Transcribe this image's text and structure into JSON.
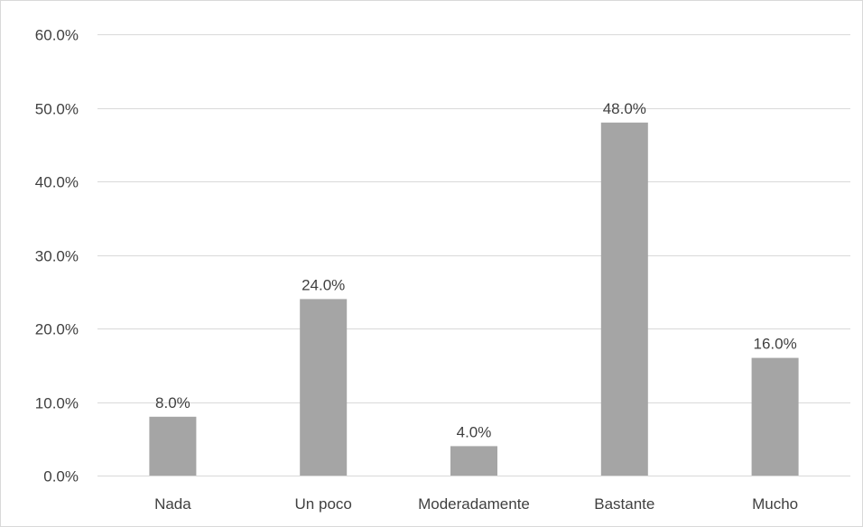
{
  "chart_data": {
    "type": "bar",
    "categories": [
      "Nada",
      "Un poco",
      "Moderadamente",
      "Bastante",
      "Mucho"
    ],
    "values": [
      8.0,
      24.0,
      4.0,
      48.0,
      16.0
    ],
    "value_labels": [
      "8.0%",
      "24.0%",
      "4.0%",
      "48.0%",
      "16.0%"
    ],
    "y_ticks": [
      0,
      10,
      20,
      30,
      40,
      50,
      60
    ],
    "y_tick_labels": [
      "0.0%",
      "10.0%",
      "20.0%",
      "30.0%",
      "40.0%",
      "50.0%",
      "60.0%"
    ],
    "ylim": [
      0,
      60
    ],
    "title": "",
    "xlabel": "",
    "ylabel": "",
    "grid": true,
    "legend": "none",
    "bar_color": "#a5a5a5",
    "grid_color": "#d9d9d9",
    "text_color": "#404040"
  }
}
